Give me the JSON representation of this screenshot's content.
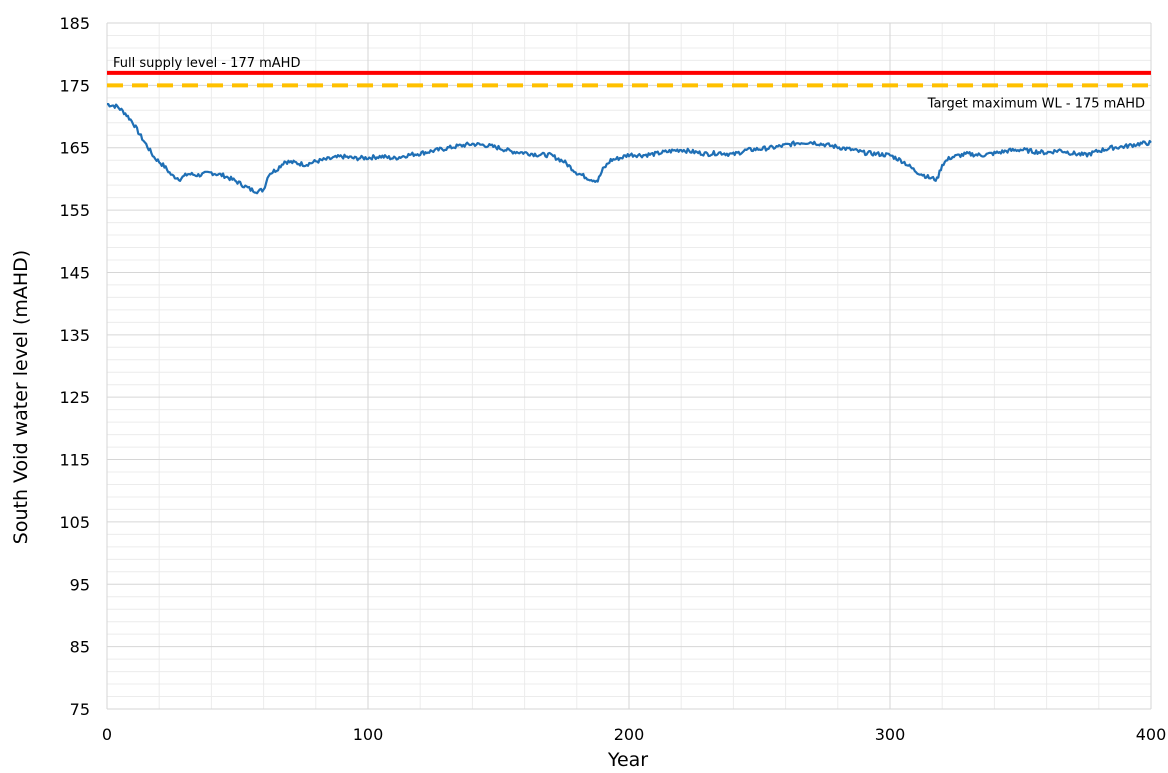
{
  "chart_data": {
    "type": "line",
    "title": "",
    "xlabel": "Year",
    "ylabel": "South Void water level (mAHD)",
    "xlim": [
      0,
      400
    ],
    "ylim": [
      75,
      185
    ],
    "x_ticks": [
      "0",
      "100",
      "200",
      "300",
      "400"
    ],
    "y_ticks": [
      "75",
      "85",
      "95",
      "105",
      "115",
      "125",
      "135",
      "145",
      "155",
      "165",
      "175",
      "185"
    ],
    "grid": true,
    "reference_lines": [
      {
        "label": "Full supply level - 177 mAHD",
        "y": 177,
        "color": "#ff0000",
        "style": "solid"
      },
      {
        "label": "Target maximum WL - 175 mAHD",
        "y": 175,
        "color": "#ffc000",
        "style": "dashed"
      }
    ],
    "series": [
      {
        "color": "#1f6fb5",
        "points": [
          [
            0,
            172
          ],
          [
            4,
            171.6
          ],
          [
            7,
            170.5
          ],
          [
            10,
            169
          ],
          [
            12,
            167.5
          ],
          [
            15,
            165.5
          ],
          [
            18,
            163.5
          ],
          [
            22,
            162
          ],
          [
            25,
            160.5
          ],
          [
            28,
            160
          ],
          [
            31,
            160.8
          ],
          [
            35,
            160.6
          ],
          [
            40,
            161
          ],
          [
            45,
            160.5
          ],
          [
            50,
            159.5
          ],
          [
            55,
            158.3
          ],
          [
            58,
            158
          ],
          [
            60,
            158.3
          ],
          [
            62,
            160.8
          ],
          [
            65,
            161.5
          ],
          [
            68,
            162.8
          ],
          [
            72,
            162.6
          ],
          [
            76,
            162.3
          ],
          [
            80,
            162.8
          ],
          [
            85,
            163.2
          ],
          [
            90,
            163.6
          ],
          [
            95,
            163.3
          ],
          [
            100,
            163.4
          ],
          [
            105,
            163.6
          ],
          [
            110,
            163.3
          ],
          [
            115,
            163.8
          ],
          [
            120,
            164.1
          ],
          [
            125,
            164.5
          ],
          [
            130,
            164.9
          ],
          [
            135,
            165.3
          ],
          [
            140,
            165.6
          ],
          [
            145,
            165.4
          ],
          [
            150,
            165
          ],
          [
            155,
            164.4
          ],
          [
            160,
            164.2
          ],
          [
            165,
            163.9
          ],
          [
            170,
            163.8
          ],
          [
            175,
            162.8
          ],
          [
            180,
            161
          ],
          [
            185,
            160
          ],
          [
            188,
            159.7
          ],
          [
            190,
            161.5
          ],
          [
            193,
            163
          ],
          [
            197,
            163.4
          ],
          [
            200,
            163.9
          ],
          [
            205,
            163.8
          ],
          [
            210,
            164
          ],
          [
            215,
            164.4
          ],
          [
            220,
            164.7
          ],
          [
            225,
            164.3
          ],
          [
            230,
            164
          ],
          [
            235,
            164.2
          ],
          [
            240,
            163.9
          ],
          [
            245,
            164.6
          ],
          [
            250,
            164.8
          ],
          [
            255,
            165
          ],
          [
            260,
            165.4
          ],
          [
            265,
            165.8
          ],
          [
            270,
            165.9
          ],
          [
            275,
            165.5
          ],
          [
            280,
            165.1
          ],
          [
            285,
            164.7
          ],
          [
            290,
            164.2
          ],
          [
            295,
            164
          ],
          [
            300,
            163.8
          ],
          [
            305,
            162.8
          ],
          [
            310,
            161.2
          ],
          [
            315,
            160.2
          ],
          [
            318,
            159.9
          ],
          [
            320,
            162.3
          ],
          [
            323,
            163.4
          ],
          [
            327,
            163.8
          ],
          [
            330,
            164
          ],
          [
            335,
            163.8
          ],
          [
            340,
            164.1
          ],
          [
            345,
            164.5
          ],
          [
            350,
            164.7
          ],
          [
            355,
            164.4
          ],
          [
            360,
            164.2
          ],
          [
            365,
            164.6
          ],
          [
            370,
            164.1
          ],
          [
            375,
            163.8
          ],
          [
            380,
            164.5
          ],
          [
            385,
            165
          ],
          [
            390,
            165.2
          ],
          [
            395,
            165.6
          ],
          [
            400,
            165.8
          ]
        ]
      }
    ]
  }
}
